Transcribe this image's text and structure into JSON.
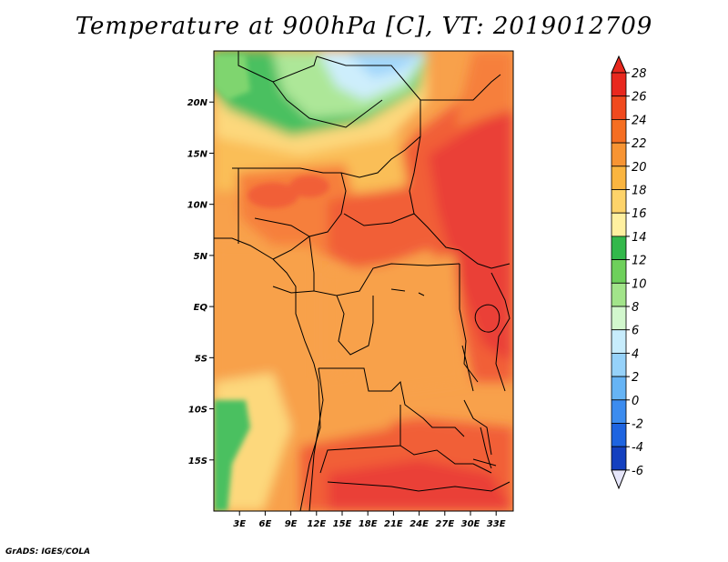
{
  "title": "Temperature at 900hPa [C], VT: 2019012709",
  "footer": "GrADS: IGES/COLA",
  "lat_labels": [
    "20N",
    "15N",
    "10N",
    "5N",
    "EQ",
    "5S",
    "10S",
    "15S"
  ],
  "lon_labels": [
    "3E",
    "6E",
    "9E",
    "12E",
    "15E",
    "18E",
    "21E",
    "24E",
    "27E",
    "30E",
    "33E"
  ],
  "colorbar": {
    "labels": [
      "28",
      "26",
      "24",
      "22",
      "20",
      "18",
      "16",
      "14",
      "12",
      "10",
      "8",
      "6",
      "4",
      "2",
      "0",
      "-2",
      "-4",
      "-6"
    ],
    "colors": [
      "#e8281e",
      "#f04a1e",
      "#f56e22",
      "#f79433",
      "#fab540",
      "#fdd36a",
      "#fff0a0",
      "#33b84b",
      "#6ed05b",
      "#a2e48a",
      "#d2f7cd",
      "#c7ecfc",
      "#96d2fa",
      "#66b4f5",
      "#3c8cef",
      "#1e64e0",
      "#1440bf",
      "#0a0a72"
    ]
  },
  "chart_data": {
    "type": "heatmap",
    "title": "Temperature at 900hPa [C], VT: 2019012709",
    "variable": "Temperature at 900hPa",
    "units": "C",
    "valid_time": "2019012709",
    "lat_range": [
      -20,
      25
    ],
    "lon_range": [
      0,
      35
    ],
    "lat_ticks": [
      "20N",
      "15N",
      "10N",
      "5N",
      "EQ",
      "5S",
      "10S",
      "15S"
    ],
    "lon_ticks": [
      "3E",
      "6E",
      "9E",
      "12E",
      "15E",
      "18E",
      "21E",
      "24E",
      "27E",
      "30E",
      "33E"
    ],
    "color_levels": [
      -6,
      -4,
      -2,
      0,
      2,
      4,
      6,
      8,
      10,
      12,
      14,
      16,
      18,
      20,
      22,
      24,
      26,
      28
    ],
    "regions": [
      {
        "area": "Sahara north of 18N around 6E-12E",
        "value_range": [
          8,
          14
        ]
      },
      {
        "area": "Sahel 10N-15N",
        "value_range": [
          20,
          24
        ]
      },
      {
        "area": "Sudan / South Sudan east of 24E",
        "value_range": [
          26,
          28
        ]
      },
      {
        "area": "Congo basin near equator",
        "value_range": [
          22,
          24
        ]
      },
      {
        "area": "Angola coastal strip 10S-20S",
        "value_range": [
          14,
          18
        ]
      },
      {
        "area": "Zambia / northern Botswana 15S-20S",
        "value_range": [
          26,
          28
        ]
      }
    ]
  }
}
